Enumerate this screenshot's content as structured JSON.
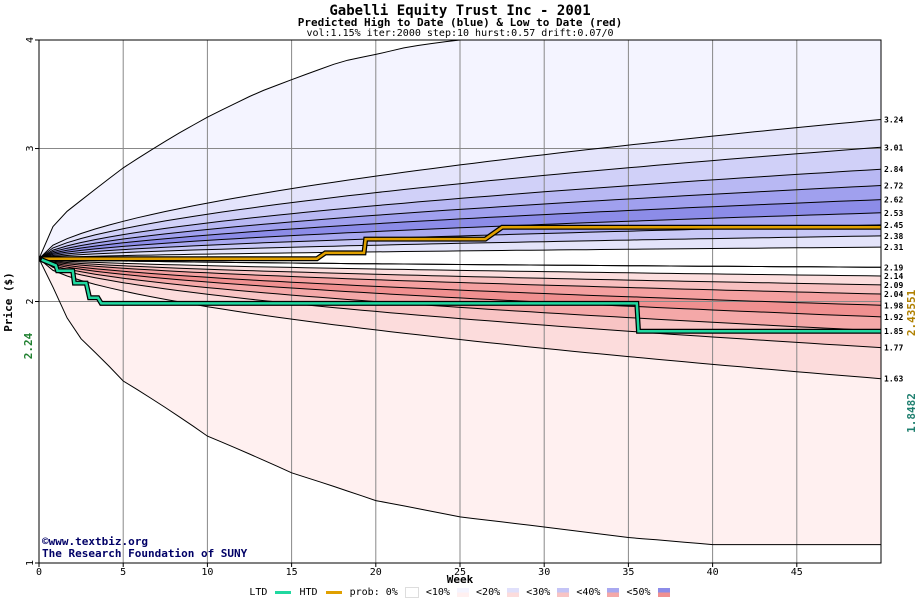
{
  "title": "Gabelli Equity Trust Inc - 2001",
  "subtitle": "Predicted High to Date (blue) &  Low to Date (red)",
  "params": "vol:1.15% iter:2000 step:10 hurst:0.57 drift:0.07/0",
  "watermark": {
    "line1": "©www.textbiz.org",
    "line2": "The Research Foundation of SUNY"
  },
  "legend": {
    "ltd": "LTD",
    "htd": "HTD",
    "prob": "prob:",
    "bands": [
      "0%",
      "<10%",
      "<20%",
      "<30%",
      "<40%",
      "<50%"
    ],
    "ltd_color": "#20d8a0",
    "htd_color": "#e0a000"
  },
  "chart_data": {
    "type": "area",
    "xlabel": "Week",
    "ylabel": "Price ($)",
    "xlim": [
      0,
      50
    ],
    "ylim": [
      1,
      4
    ],
    "y_scale": "log",
    "xticks": [
      0,
      5,
      10,
      15,
      20,
      25,
      30,
      35,
      40,
      45
    ],
    "yticks": [
      1,
      2,
      3,
      4
    ],
    "grid": true,
    "start_price": 2.24,
    "start_price_label": "2.24",
    "htd_final_label": "2.43551",
    "ltd_final_label": "1.8482",
    "right_labels": [
      {
        "value": 3.24,
        "label": "3.24"
      },
      {
        "value": 3.01,
        "label": "3.01"
      },
      {
        "value": 2.84,
        "label": "2.84"
      },
      {
        "value": 2.72,
        "label": "2.72"
      },
      {
        "value": 2.62,
        "label": "2.62"
      },
      {
        "value": 2.53,
        "label": "2.53"
      },
      {
        "value": 2.45,
        "label": "2.45"
      },
      {
        "value": 2.38,
        "label": "2.38"
      },
      {
        "value": 2.31,
        "label": "2.31"
      },
      {
        "value": 2.19,
        "label": "2.19"
      },
      {
        "value": 2.14,
        "label": "2.14"
      },
      {
        "value": 2.09,
        "label": "2.09"
      },
      {
        "value": 2.04,
        "label": "2.04"
      },
      {
        "value": 1.98,
        "label": "1.98"
      },
      {
        "value": 1.92,
        "label": "1.92"
      },
      {
        "value": 1.85,
        "label": "1.85"
      },
      {
        "value": 1.77,
        "label": "1.77"
      },
      {
        "value": 1.63,
        "label": "1.63"
      }
    ],
    "outer_high": {
      "x": [
        0,
        1,
        3,
        5,
        8,
        10,
        13,
        15,
        18,
        20,
        22,
        24,
        25,
        26
      ],
      "y": [
        2.24,
        2.48,
        2.66,
        2.85,
        3.1,
        3.26,
        3.48,
        3.6,
        3.78,
        3.85,
        3.93,
        3.98,
        4.0,
        4.0
      ]
    },
    "outer_low": {
      "x": [
        0,
        2,
        5,
        10,
        15,
        20,
        25,
        30,
        35,
        40,
        45,
        50
      ],
      "y": [
        2.24,
        1.85,
        1.62,
        1.4,
        1.27,
        1.18,
        1.13,
        1.1,
        1.07,
        1.05,
        1.05,
        1.05
      ]
    },
    "blue_bands": [
      {
        "final": 3.24,
        "fill": "#f4f4ff"
      },
      {
        "final": 3.01,
        "fill": "#e4e4fb"
      },
      {
        "final": 2.84,
        "fill": "#d0d0f8"
      },
      {
        "final": 2.72,
        "fill": "#b8b8f3"
      },
      {
        "final": 2.62,
        "fill": "#a0a0ee"
      },
      {
        "final": 2.53,
        "fill": "#8c8ce8"
      },
      {
        "final": 2.45,
        "fill": "#a8a8f0"
      },
      {
        "final": 2.38,
        "fill": "#c8c8f6"
      },
      {
        "final": 2.31,
        "fill": "#e4e4fa"
      }
    ],
    "red_bands": [
      {
        "final": 1.63,
        "fill": "#fff0f0"
      },
      {
        "final": 1.77,
        "fill": "#fcdcdc"
      },
      {
        "final": 1.85,
        "fill": "#f8c4c4"
      },
      {
        "final": 1.92,
        "fill": "#f4a8a8"
      },
      {
        "final": 1.98,
        "fill": "#f09090"
      },
      {
        "final": 2.04,
        "fill": "#f4a0a0"
      },
      {
        "final": 2.09,
        "fill": "#f8c0c0"
      },
      {
        "final": 2.14,
        "fill": "#fcdede"
      }
    ],
    "mid_line": 2.19,
    "htd": {
      "x": [
        0,
        1,
        16.5,
        17,
        19.3,
        19.4,
        26.5,
        27.5,
        50
      ],
      "y": [
        2.24,
        2.24,
        2.24,
        2.275,
        2.275,
        2.36,
        2.36,
        2.435,
        2.43551
      ]
    },
    "ltd": {
      "x": [
        0,
        1,
        1.1,
        2,
        2.1,
        2.8,
        3,
        3.5,
        3.7,
        35.5,
        35.6,
        50
      ],
      "y": [
        2.24,
        2.2,
        2.17,
        2.17,
        2.1,
        2.1,
        2.02,
        2.02,
        1.99,
        1.99,
        1.8482,
        1.8482
      ]
    }
  }
}
